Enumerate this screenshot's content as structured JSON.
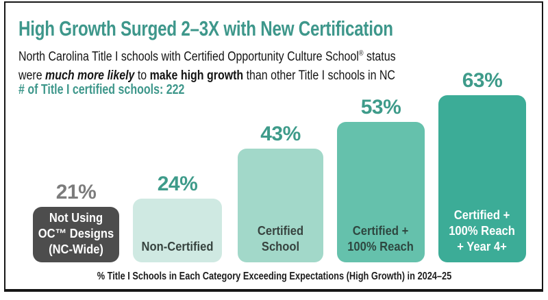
{
  "header": {
    "title": "High Growth Surged 2–3X with New Certification",
    "subtitle_line1_pre": "North Carolina Title I schools with Certified Opportunity Culture School",
    "subtitle_reg_mark": "®",
    "subtitle_line1_post": " status",
    "subtitle_line2_pre": "were ",
    "subtitle_line2_em": "much more likely",
    "subtitle_line2_mid": " to ",
    "subtitle_line2_bold": "make high growth",
    "subtitle_line2_post": " than other Title I schools in NC",
    "stat_line": "# of Title I certified schools: 222"
  },
  "chart_data": {
    "type": "bar",
    "title": "High Growth Surged 2–3X with New Certification",
    "categories": [
      "Not Using OC™ Designs (NC-Wide)",
      "Non-Certified",
      "Certified School",
      "Certified + 100% Reach",
      "Certified + 100% Reach + Year 4+"
    ],
    "values": [
      21,
      24,
      43,
      53,
      63
    ],
    "value_labels": [
      "21%",
      "24%",
      "43%",
      "53%",
      "63%"
    ],
    "bar_label_lines": [
      [
        "Not Using",
        "OC™ Designs",
        "(NC-Wide)"
      ],
      [
        "Non-Certified"
      ],
      [
        "Certified",
        "School"
      ],
      [
        "Certified +",
        "100% Reach"
      ],
      [
        "Certified +",
        "100% Reach",
        "+ Year 4+"
      ]
    ],
    "bar_colors": [
      "#4d4d4d",
      "#cfe9e2",
      "#a2d8c9",
      "#65c1ac",
      "#3cac97"
    ],
    "bar_text_colors": [
      "#ffffff",
      "#37433f",
      "#37433f",
      "#2e4740",
      "#ffffff"
    ],
    "value_label_colors": [
      "#7c7c7c",
      "#3e9b8a",
      "#3e9b8a",
      "#3e9b8a",
      "#3e9b8a"
    ],
    "xlabel": "% Title I Schools in Each Category Exceeding Expectations (High Growth) in 2024–25",
    "ylabel": "",
    "ylim": [
      0,
      70
    ],
    "grid": false,
    "legend": false,
    "value_label_position": "above bars"
  },
  "footer": {
    "caption": "% Title I Schools in Each Category Exceeding Expectations (High Growth) in 2024–25"
  },
  "colors": {
    "accent_teal_text": "#3e978b",
    "frame_border": "#161616",
    "background": "#ffffff",
    "subtitle_text": "#141414",
    "gray_value_label": "#7c7c7c"
  }
}
